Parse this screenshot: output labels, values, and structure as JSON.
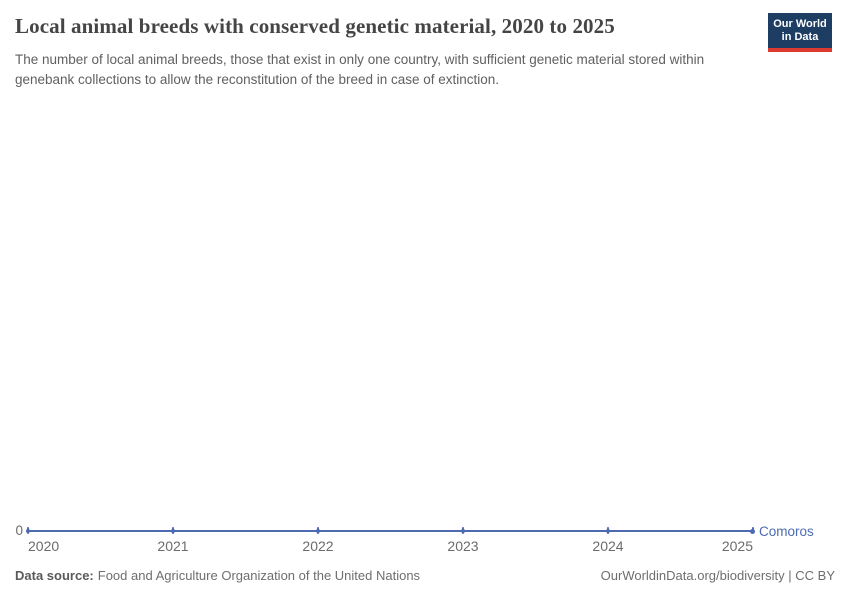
{
  "header": {
    "title": "Local animal breeds with conserved genetic material, 2020 to 2025",
    "subtitle": "The number of local animal breeds, those that exist in only one country, with sufficient genetic material stored within genebank collections to allow the reconstitution of the breed in case of extinction.",
    "logo": {
      "line1": "Our World",
      "line2": "in Data"
    }
  },
  "chart_data": {
    "type": "line",
    "title": "Local animal breeds with conserved genetic material, 2020 to 2025",
    "x": [
      2020,
      2021,
      2022,
      2023,
      2024,
      2025
    ],
    "series": [
      {
        "name": "Comoros",
        "values": [
          0,
          0,
          0,
          0,
          0,
          0
        ],
        "color": "#4c6bb1"
      }
    ],
    "xlabel": "",
    "ylabel": "",
    "ylim": [
      0,
      0
    ],
    "y_axis_labels": [
      "0"
    ],
    "grid": false,
    "legend_position": "right-end-of-line"
  },
  "axis": {
    "y_zero_label": "0",
    "x_tick_labels": [
      "2020",
      "2021",
      "2022",
      "2023",
      "2024",
      "2025"
    ]
  },
  "footer": {
    "datasource_label": "Data source:",
    "datasource_value": "Food and Agriculture Organization of the United Nations",
    "attribution": "OurWorldinData.org/biodiversity | CC BY"
  },
  "colors": {
    "line": "#4c6bb1",
    "logo_navy": "#1d3d63",
    "logo_red": "#dd3a31",
    "title_text": "#454545",
    "subtitle_text": "#606060",
    "axis_text": "#6b6b6b"
  }
}
